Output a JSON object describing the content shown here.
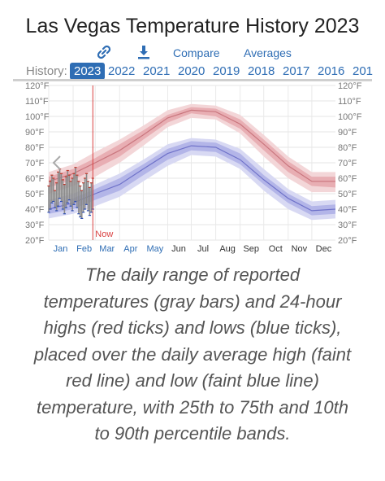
{
  "page": {
    "title": "Las Vegas Temperature History 2023",
    "toolbar": {
      "link_icon": "link-icon",
      "download_icon": "download-icon",
      "compare_label": "Compare",
      "averages_label": "Averages"
    },
    "history": {
      "label": "History:",
      "years": [
        "2023",
        "2022",
        "2021",
        "2020",
        "2019",
        "2018",
        "2017",
        "2016",
        "201"
      ],
      "selected": "2023"
    },
    "caption": "The daily range of reported temperatures (gray bars) and 24-hour highs (red ticks) and lows (blue ticks), placed over the daily average high (faint red line) and low (faint blue line) temperature, with 25th to 75th and 10th to 90th percentile bands.",
    "colors": {
      "accent": "#2e6db4",
      "high_band_outer": "#f3d6d8",
      "high_band_inner": "#e8aeb3",
      "high_line": "#c9767e",
      "low_band_outer": "#d8d9f3",
      "low_band_inner": "#b3b5e8",
      "low_line": "#6f72c9",
      "now_line": "#d94040",
      "range_bars": "#8a8a8a"
    }
  },
  "chart_data": {
    "type": "line",
    "title": "Las Vegas Temperature History 2023",
    "y_tick_labels": [
      "120°F",
      "110°F",
      "100°F",
      "90°F",
      "80°F",
      "70°F",
      "60°F",
      "50°F",
      "40°F",
      "30°F",
      "20°F"
    ],
    "y_ticks": [
      120,
      110,
      100,
      90,
      80,
      70,
      60,
      50,
      40,
      30,
      20
    ],
    "ylim": [
      20,
      120
    ],
    "x_month_labels": [
      "Jan",
      "Feb",
      "Mar",
      "Apr",
      "May",
      "Jun",
      "Jul",
      "Aug",
      "Sep",
      "Oct",
      "Nov",
      "Dec"
    ],
    "now_label": "Now",
    "now_day": 57,
    "grid": true,
    "avg_high": {
      "days": [
        1,
        32,
        60,
        91,
        121,
        152,
        182,
        213,
        244,
        274,
        305,
        335,
        365
      ],
      "p50": [
        58,
        63,
        70,
        78,
        88,
        99,
        104,
        103,
        95,
        82,
        68,
        58,
        58
      ],
      "p25": [
        54,
        59,
        66,
        74,
        85,
        96,
        102,
        100,
        92,
        78,
        64,
        55,
        54
      ],
      "p75": [
        61,
        66,
        73,
        82,
        91,
        101,
        106,
        105,
        98,
        85,
        71,
        61,
        61
      ],
      "p10": [
        50,
        55,
        61,
        70,
        81,
        93,
        99,
        98,
        89,
        74,
        60,
        51,
        51
      ],
      "p90": [
        64,
        69,
        77,
        85,
        94,
        104,
        108,
        107,
        101,
        88,
        74,
        64,
        64
      ]
    },
    "avg_low": {
      "days": [
        1,
        32,
        60,
        91,
        121,
        152,
        182,
        213,
        244,
        274,
        305,
        335,
        365
      ],
      "p50": [
        40,
        44,
        50,
        56,
        66,
        76,
        81,
        80,
        72,
        59,
        47,
        39,
        40
      ],
      "p25": [
        37,
        40,
        46,
        52,
        62,
        72,
        78,
        77,
        69,
        56,
        44,
        36,
        37
      ],
      "p75": [
        43,
        47,
        53,
        60,
        69,
        79,
        84,
        83,
        76,
        62,
        50,
        42,
        43
      ],
      "p10": [
        34,
        37,
        42,
        48,
        58,
        68,
        75,
        74,
        66,
        52,
        40,
        33,
        34
      ],
      "p90": [
        46,
        50,
        56,
        63,
        72,
        82,
        86,
        85,
        79,
        66,
        53,
        45,
        46
      ]
    },
    "observed": {
      "days": [
        1,
        3,
        5,
        7,
        9,
        11,
        13,
        15,
        17,
        19,
        21,
        23,
        25,
        27,
        29,
        31,
        33,
        35,
        37,
        39,
        41,
        43,
        45,
        47,
        49,
        51,
        53,
        55,
        57
      ],
      "high": [
        55,
        58,
        62,
        60,
        52,
        57,
        64,
        66,
        63,
        59,
        56,
        61,
        65,
        62,
        58,
        60,
        63,
        67,
        62,
        58,
        55,
        52,
        57,
        60,
        63,
        58,
        54,
        57,
        60
      ],
      "low": [
        38,
        40,
        44,
        45,
        41,
        39,
        42,
        47,
        45,
        40,
        37,
        41,
        44,
        46,
        42,
        39,
        43,
        45,
        41,
        37,
        35,
        34,
        38,
        40,
        43,
        39,
        36,
        38,
        40
      ]
    }
  }
}
